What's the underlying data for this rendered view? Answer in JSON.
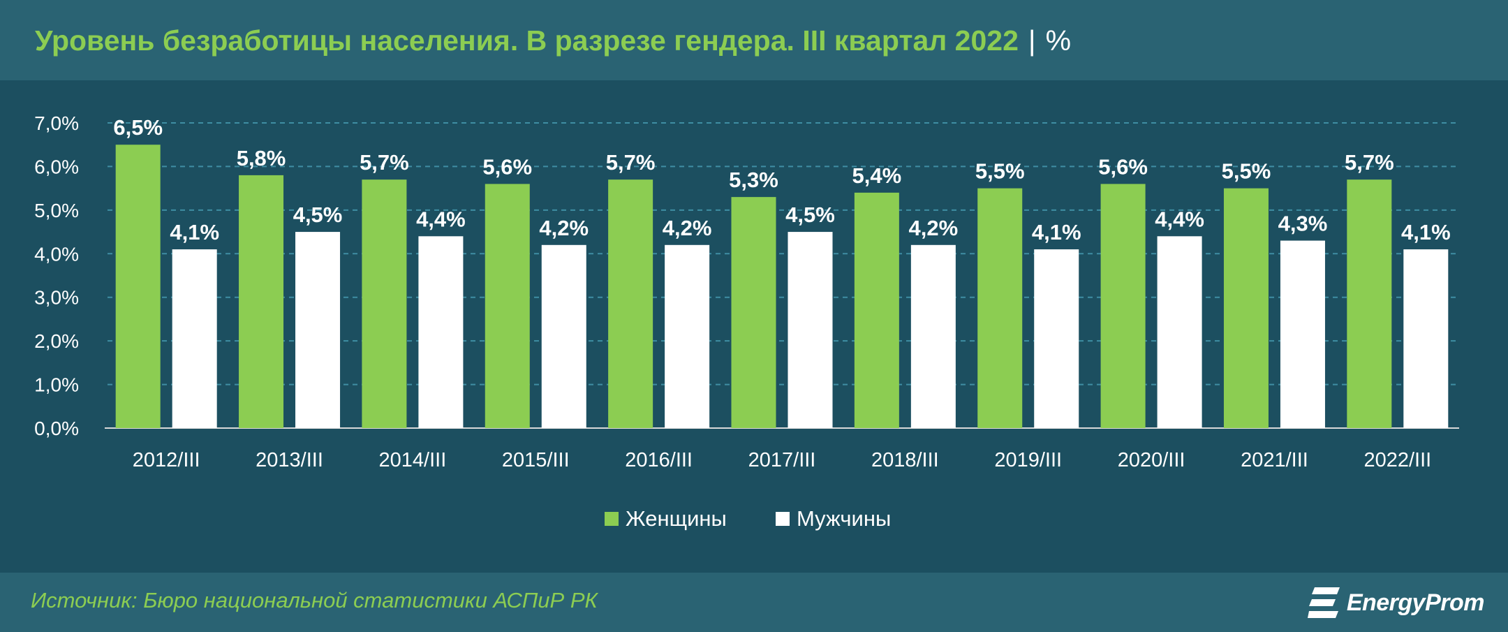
{
  "header": {
    "title": "Уровень безработицы населения. В разрезе гендера. III квартал 2022",
    "separator": "|",
    "unit": "%"
  },
  "colors": {
    "women": "#8ccd52",
    "men": "#ffffff",
    "accent_title": "#8ccd52",
    "gridline": "#3f8ea3",
    "background": "#1c4f60"
  },
  "chart_data": {
    "type": "bar",
    "categories": [
      "2012/III",
      "2013/III",
      "2014/III",
      "2015/III",
      "2016/III",
      "2017/III",
      "2018/III",
      "2019/III",
      "2020/III",
      "2021/III",
      "2022/III"
    ],
    "series": [
      {
        "name": "Женщины",
        "values": [
          6.5,
          5.8,
          5.7,
          5.6,
          5.7,
          5.3,
          5.4,
          5.5,
          5.6,
          5.5,
          5.7
        ],
        "labels": [
          "6,5%",
          "5,8%",
          "5,7%",
          "5,6%",
          "5,7%",
          "5,3%",
          "5,4%",
          "5,5%",
          "5,6%",
          "5,5%",
          "5,7%"
        ]
      },
      {
        "name": "Мужчины",
        "values": [
          4.1,
          4.5,
          4.4,
          4.2,
          4.2,
          4.5,
          4.2,
          4.1,
          4.4,
          4.3,
          4.1
        ],
        "labels": [
          "4,1%",
          "4,5%",
          "4,4%",
          "4,2%",
          "4,2%",
          "4,5%",
          "4,2%",
          "4,1%",
          "4,4%",
          "4,3%",
          "4,1%"
        ]
      }
    ],
    "ylim": [
      0,
      7
    ],
    "yticks": [
      0,
      1,
      2,
      3,
      4,
      5,
      6,
      7
    ],
    "ytick_labels": [
      "0,0%",
      "1,0%",
      "2,0%",
      "3,0%",
      "4,0%",
      "5,0%",
      "6,0%",
      "7,0%"
    ],
    "grid": true,
    "legend": "bottom-center"
  },
  "footer": {
    "source": "Источник: Бюро национальной статистики АСПиР РК",
    "logo_text": "EnergyProm",
    "logo_icon": "energyprom-logo-icon"
  }
}
